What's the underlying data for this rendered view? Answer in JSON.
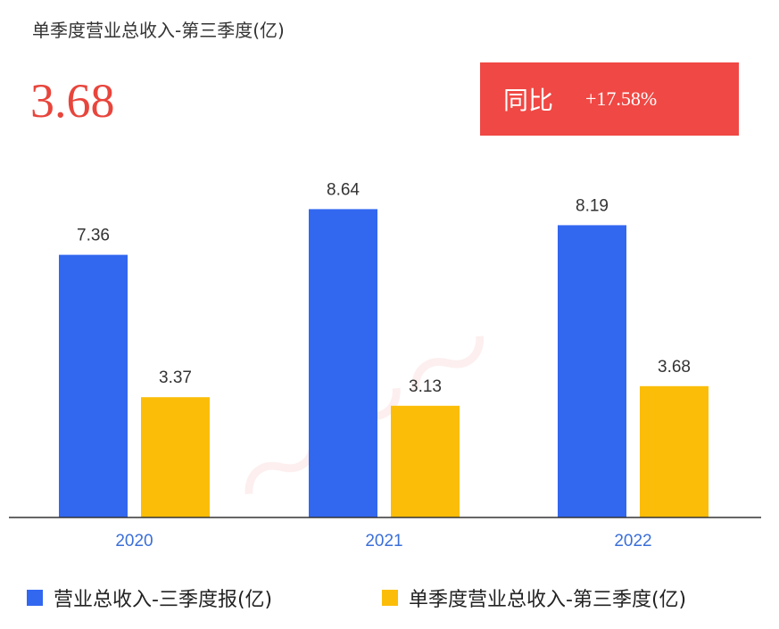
{
  "header": {
    "title": "单季度营业总收入-第三季度(亿)",
    "current_value": "3.68",
    "yoy_label": "同比",
    "yoy_value": "+17.58%"
  },
  "colors": {
    "series1": "#3267f0",
    "series2": "#fbbd08",
    "highlight": "#e8453c",
    "badge": "#f04844",
    "axis_text": "#3b6fd8"
  },
  "chart_data": {
    "type": "bar",
    "categories": [
      "2020",
      "2021",
      "2022"
    ],
    "series": [
      {
        "name": "营业总收入-三季度报(亿)",
        "values": [
          7.36,
          8.64,
          8.19
        ],
        "labels": [
          "7.36",
          "8.64",
          "8.19"
        ]
      },
      {
        "name": "单季度营业总收入-第三季度(亿)",
        "values": [
          3.37,
          3.13,
          3.68
        ],
        "labels": [
          "3.37",
          "3.13",
          "3.68"
        ]
      }
    ],
    "ylim": [
      0,
      10
    ],
    "grid": false,
    "legend": "bottom"
  }
}
